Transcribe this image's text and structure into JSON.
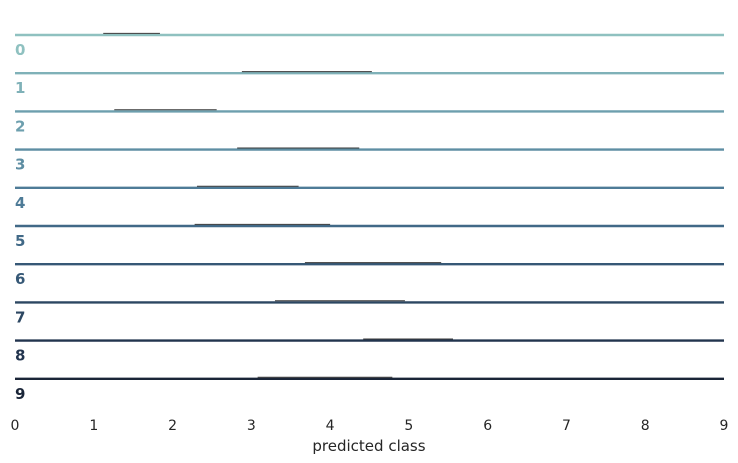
{
  "chart_data": {
    "type": "ridgeline",
    "xlabel": "predicted class",
    "xlim": [
      0,
      9
    ],
    "xticks": [
      "0",
      "1",
      "2",
      "3",
      "4",
      "5",
      "6",
      "7",
      "8",
      "9"
    ],
    "grid": false,
    "rows": [
      {
        "label": "0",
        "range": [
          1.12,
          1.84
        ],
        "color": "#8fc1c0"
      },
      {
        "label": "1",
        "range": [
          2.88,
          4.53
        ],
        "color": "#7fb1b8"
      },
      {
        "label": "2",
        "range": [
          1.26,
          2.56
        ],
        "color": "#6d9fae"
      },
      {
        "label": "3",
        "range": [
          2.82,
          4.37
        ],
        "color": "#5e8ea3"
      },
      {
        "label": "4",
        "range": [
          2.31,
          3.6
        ],
        "color": "#4e7b97"
      },
      {
        "label": "5",
        "range": [
          2.28,
          4.0
        ],
        "color": "#416987"
      },
      {
        "label": "6",
        "range": [
          3.68,
          5.41
        ],
        "color": "#365876"
      },
      {
        "label": "7",
        "range": [
          3.3,
          4.95
        ],
        "color": "#2c4762"
      },
      {
        "label": "8",
        "range": [
          4.42,
          5.56
        ],
        "color": "#22344e"
      },
      {
        "label": "9",
        "range": [
          3.08,
          4.79
        ],
        "color": "#1a2538"
      }
    ]
  }
}
